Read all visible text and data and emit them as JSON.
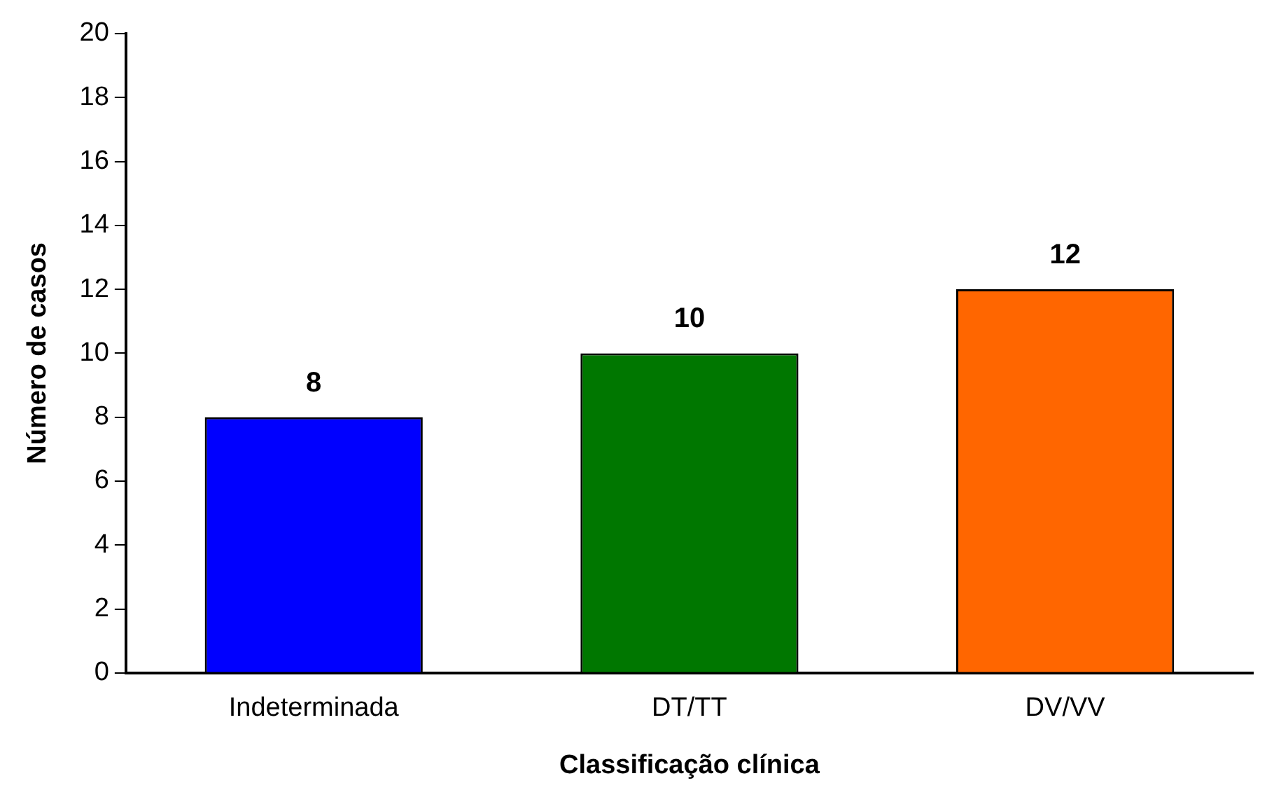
{
  "chart_data": {
    "type": "bar",
    "xlabel": "Classificação clínica",
    "ylabel": "Número de casos",
    "categories": [
      "Indeterminada",
      "DT/TT",
      "DV/VV"
    ],
    "values": [
      8,
      10,
      12
    ],
    "colors": [
      "#0000ff",
      "#007700",
      "#ff6600"
    ],
    "ylim": [
      0,
      20
    ],
    "yticks": [
      0,
      2,
      4,
      6,
      8,
      10,
      12,
      14,
      16,
      18,
      20
    ],
    "grid": false,
    "legend": false,
    "data_labels": true
  }
}
